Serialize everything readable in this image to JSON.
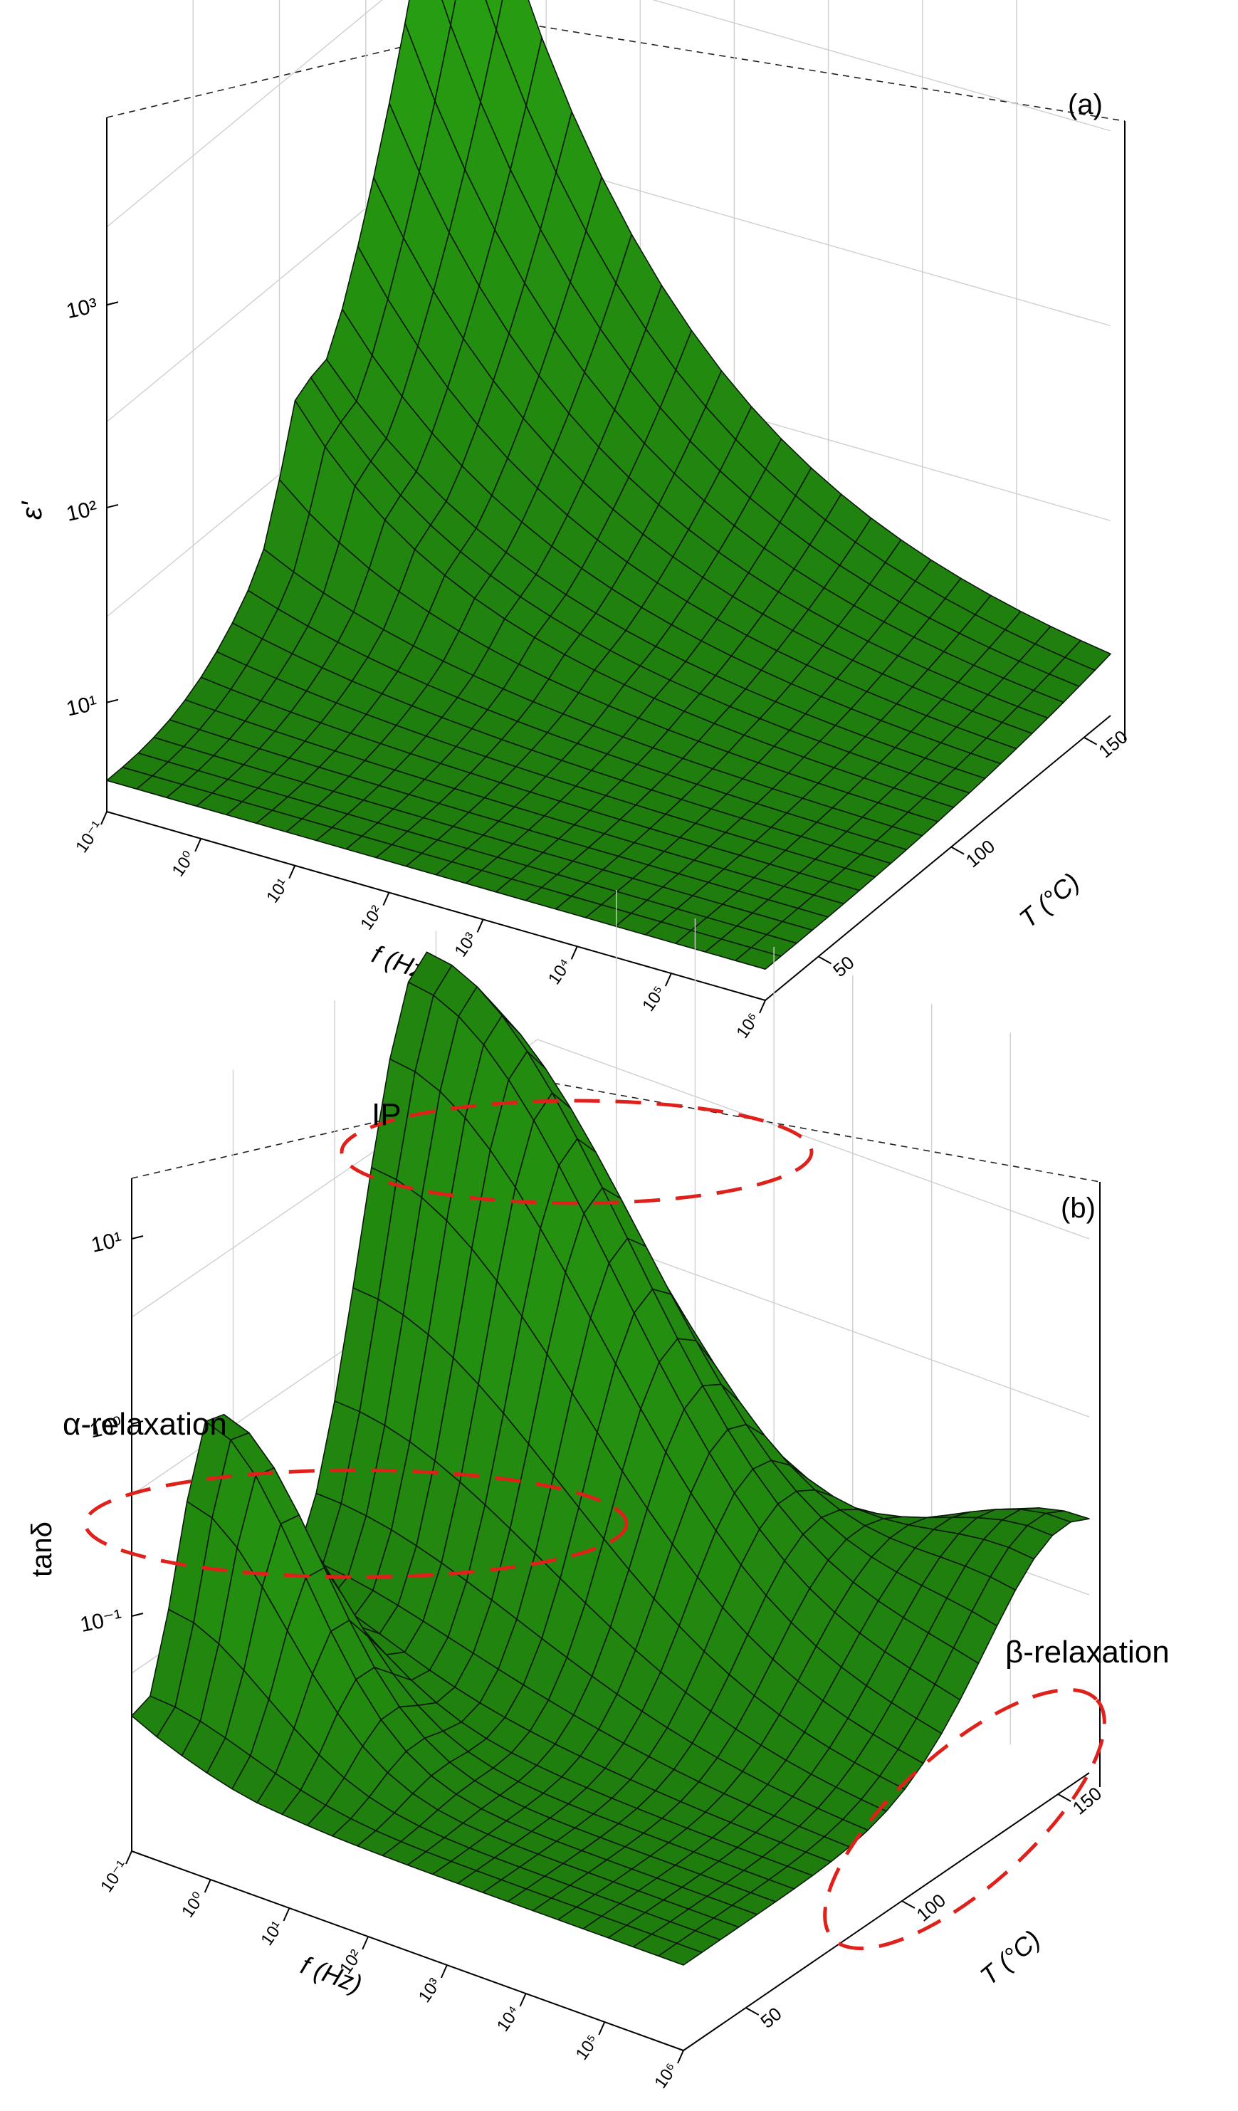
{
  "colors": {
    "surface": "#1f7d0e",
    "mesh": "#0a1a0a",
    "annotation": "#e0201a"
  },
  "chart_data": [
    {
      "type": "surface3d",
      "panel_label": "(a)",
      "zlabel": "ε'",
      "xlabel": "f (Hz)",
      "ylabel": "T (°C)",
      "zscale": "log",
      "x_ticks": [
        "10⁻¹",
        "10⁰",
        "10¹",
        "10²",
        "10³",
        "10⁴",
        "10⁵",
        "10⁶"
      ],
      "y_ticks": [
        "50",
        "100",
        "150"
      ],
      "z_ticks": [
        "10¹",
        "10²",
        "10³"
      ],
      "xlim": [
        "10⁻¹",
        "10⁶"
      ],
      "ylim": [
        30,
        160
      ],
      "zlim": [
        "8",
        "8000"
      ],
      "grid": true,
      "description_of_surface": {
        "max_z": 8000,
        "max_at": {
          "f": "10⁻¹",
          "T": 160
        },
        "min_z": 8,
        "shoulder": {
          "f": "10⁻¹",
          "T": 100,
          "z": 600
        }
      }
    },
    {
      "type": "surface3d",
      "panel_label": "(b)",
      "zlabel": "tanδ",
      "xlabel": "f (Hz)",
      "ylabel": "T (°C)",
      "zscale": "log",
      "x_ticks": [
        "10⁻¹",
        "10⁰",
        "10¹",
        "10²",
        "10³",
        "10⁴",
        "10⁵",
        "10⁶"
      ],
      "y_ticks": [
        "50",
        "100",
        "150"
      ],
      "z_ticks": [
        "10⁻¹",
        "10⁰",
        "10¹"
      ],
      "xlim": [
        "10⁻¹",
        "10⁶"
      ],
      "ylim": [
        30,
        160
      ],
      "zlim": [
        "0.03",
        "30"
      ],
      "grid": true,
      "annotations": [
        {
          "text": "IP"
        },
        {
          "text": "α-relaxation"
        },
        {
          "text": "β-relaxation"
        }
      ],
      "description_of_surface": {
        "plateau_z": 25,
        "alpha_peak": {
          "f": "10⁻¹",
          "T": 65,
          "z": 1.1
        },
        "beta_region": {
          "f": "10⁶",
          "T": 150,
          "z": 0.06
        },
        "min_z": 0.035
      }
    }
  ]
}
